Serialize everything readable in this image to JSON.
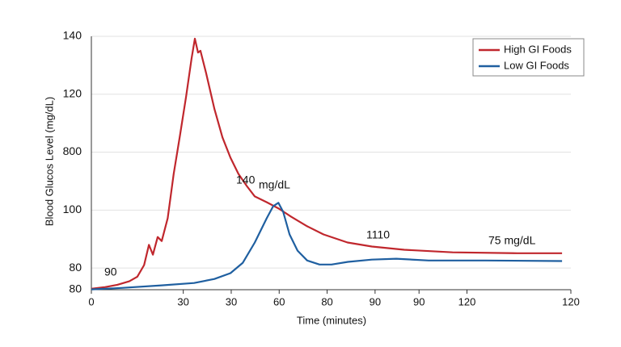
{
  "chart_data": {
    "type": "line",
    "y_label": "Blood Glucos Level (mg/dL)",
    "x_label": "Time (minutes)",
    "xlim": [
      0,
      120
    ],
    "xticks": [
      0,
      {
        "value": 23,
        "label": "30"
      },
      {
        "value": 35,
        "label": "30"
      },
      {
        "value": 47,
        "label": "60"
      },
      {
        "value": 59,
        "label": "80"
      },
      {
        "value": 71,
        "label": "90"
      },
      {
        "value": 82,
        "label": "90"
      },
      {
        "value": 94,
        "label": "120"
      },
      120
    ],
    "ylim": [
      52.5,
      140
    ],
    "yticks": [
      140,
      120,
      {
        "value": 100,
        "label": "800"
      },
      {
        "value": 80,
        "label": "100"
      },
      {
        "value": 60,
        "label": "80"
      },
      {
        "value": 52.5,
        "label": "80"
      }
    ],
    "grid": true,
    "legend": "upper right",
    "annotations": [
      "90",
      "140",
      "mg/dL",
      "1110",
      "75 mg/dL"
    ],
    "series": [
      {
        "name": "High GI Foods",
        "color": "#c0272d",
        "x": [
          0,
          3.4,
          6.5,
          9.5,
          11.5,
          13.2,
          14.4,
          15.4,
          16.6,
          17.6,
          19.1,
          20.6,
          22.1,
          23.7,
          25.1,
          25.9,
          26.7,
          27.3,
          28.7,
          30.8,
          32.8,
          34.8,
          36.8,
          38.9,
          40.9,
          43.9,
          46.9,
          50,
          54,
          58.1,
          64.1,
          70.2,
          78.3,
          90.4,
          106.6,
          117.8
        ],
        "values": [
          52.8,
          53.4,
          54.2,
          55.4,
          57,
          61,
          68,
          64.6,
          70.7,
          69.3,
          77.2,
          92.5,
          105.1,
          119.1,
          132.5,
          139.2,
          134.4,
          135,
          127.4,
          114.9,
          105.1,
          98.1,
          92.5,
          88.3,
          84.7,
          82.7,
          80.5,
          77.7,
          74.4,
          71.6,
          68.8,
          67.4,
          66.3,
          65.4,
          65.1,
          65.1
        ]
      },
      {
        "name": "Low GI Foods",
        "color": "#1f5fa0",
        "x": [
          0,
          7.5,
          17.6,
          25.7,
          30.8,
          34.8,
          37.9,
          40.9,
          43.9,
          45.5,
          46.8,
          48,
          49.6,
          51.6,
          54,
          57.1,
          60.1,
          64.2,
          70.2,
          76.3,
          84.4,
          98.6,
          117.8
        ],
        "values": [
          52.6,
          53.1,
          54,
          54.8,
          56.2,
          58.2,
          61.8,
          68.8,
          77.2,
          81.3,
          82.5,
          79.4,
          71.6,
          66,
          62.6,
          61.2,
          61.2,
          62.1,
          62.9,
          63.2,
          62.6,
          62.6,
          62.4
        ]
      }
    ]
  }
}
